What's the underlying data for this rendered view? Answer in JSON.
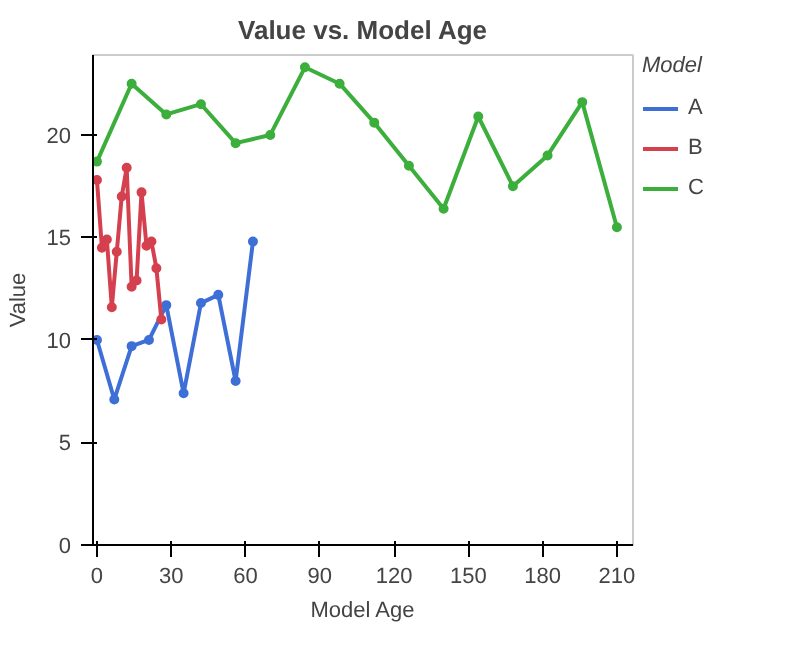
{
  "chart_data": {
    "type": "line",
    "title": "Value vs. Model Age",
    "xlabel": "Model Age",
    "ylabel": "Value",
    "legend_title": "Model",
    "legend": "right",
    "marker": "circle",
    "line_style": "solid",
    "xlim": [
      -1.6,
      216.5
    ],
    "xticks": [
      0,
      30,
      60,
      90,
      120,
      150,
      180,
      210
    ],
    "ylim": [
      0,
      23.9
    ],
    "yticks": [
      0,
      5,
      10,
      15,
      20
    ],
    "series": [
      {
        "name": "A",
        "color": "#3e6fd6",
        "x": [
          0,
          7,
          14,
          21,
          28,
          35,
          42,
          49,
          56,
          63
        ],
        "values": [
          10.0,
          7.1,
          9.7,
          10.0,
          11.7,
          7.4,
          11.8,
          12.2,
          8.0,
          14.8
        ]
      },
      {
        "name": "B",
        "color": "#d5404f",
        "x": [
          0,
          2,
          4,
          6,
          8,
          10,
          12,
          14,
          16,
          18,
          20,
          22,
          24,
          26
        ],
        "values": [
          17.8,
          14.5,
          14.9,
          11.6,
          14.3,
          17.0,
          18.4,
          12.6,
          12.9,
          17.2,
          14.6,
          14.8,
          13.5,
          11.0
        ]
      },
      {
        "name": "C",
        "color": "#3cae3c",
        "x": [
          0,
          14,
          28,
          42,
          56,
          70,
          84,
          98,
          112,
          126,
          140,
          154,
          168,
          182,
          196,
          210
        ],
        "values": [
          18.7,
          22.5,
          21.0,
          21.5,
          19.6,
          20.0,
          23.3,
          22.5,
          20.6,
          18.5,
          16.4,
          20.9,
          17.5,
          19.0,
          21.6,
          15.5
        ]
      }
    ]
  }
}
